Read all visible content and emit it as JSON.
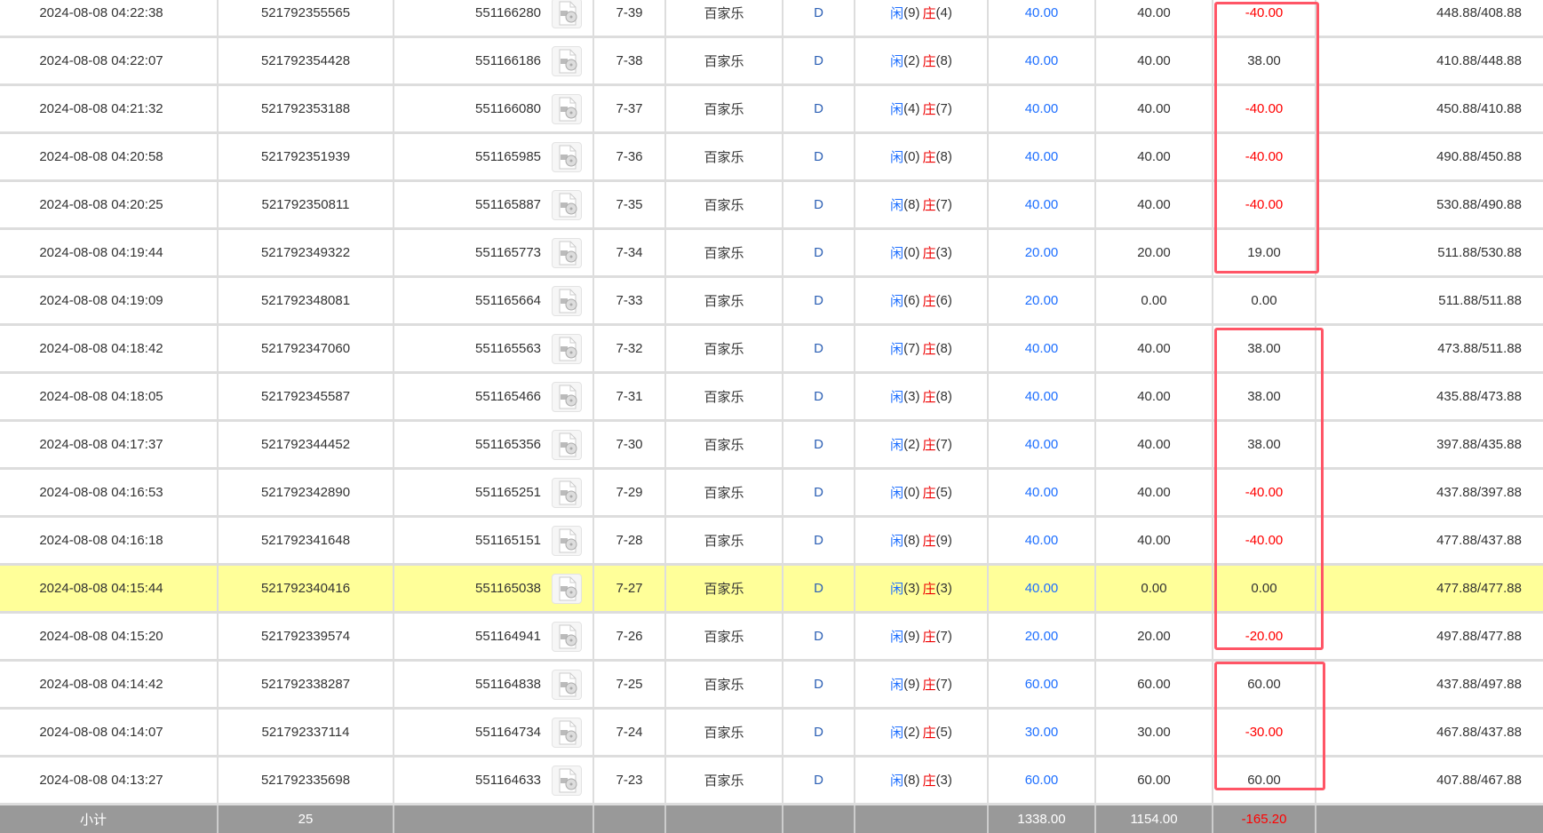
{
  "colors": {
    "player": "#1e6fff",
    "banker": "#ee0000",
    "negative": "#ff0000",
    "highlight": "#ffff99",
    "annotation": "#ff5566"
  },
  "player_label": "闲",
  "banker_label": "庄",
  "icon": "video-file-icon",
  "rows": [
    {
      "time": "2024-08-08 04:22:38",
      "order": "521792355565",
      "round": "551166280",
      "table": "7-39",
      "game": "百家乐",
      "type": "D",
      "p": "9",
      "b": "4",
      "bet": "40.00",
      "valid": "40.00",
      "profit": "-40.00",
      "balance": "448.88/408.88"
    },
    {
      "time": "2024-08-08 04:22:07",
      "order": "521792354428",
      "round": "551166186",
      "table": "7-38",
      "game": "百家乐",
      "type": "D",
      "p": "2",
      "b": "8",
      "bet": "40.00",
      "valid": "40.00",
      "profit": "38.00",
      "balance": "410.88/448.88"
    },
    {
      "time": "2024-08-08 04:21:32",
      "order": "521792353188",
      "round": "551166080",
      "table": "7-37",
      "game": "百家乐",
      "type": "D",
      "p": "4",
      "b": "7",
      "bet": "40.00",
      "valid": "40.00",
      "profit": "-40.00",
      "balance": "450.88/410.88"
    },
    {
      "time": "2024-08-08 04:20:58",
      "order": "521792351939",
      "round": "551165985",
      "table": "7-36",
      "game": "百家乐",
      "type": "D",
      "p": "0",
      "b": "8",
      "bet": "40.00",
      "valid": "40.00",
      "profit": "-40.00",
      "balance": "490.88/450.88"
    },
    {
      "time": "2024-08-08 04:20:25",
      "order": "521792350811",
      "round": "551165887",
      "table": "7-35",
      "game": "百家乐",
      "type": "D",
      "p": "8",
      "b": "7",
      "bet": "40.00",
      "valid": "40.00",
      "profit": "-40.00",
      "balance": "530.88/490.88"
    },
    {
      "time": "2024-08-08 04:19:44",
      "order": "521792349322",
      "round": "551165773",
      "table": "7-34",
      "game": "百家乐",
      "type": "D",
      "p": "0",
      "b": "3",
      "bet": "20.00",
      "valid": "20.00",
      "profit": "19.00",
      "balance": "511.88/530.88"
    },
    {
      "time": "2024-08-08 04:19:09",
      "order": "521792348081",
      "round": "551165664",
      "table": "7-33",
      "game": "百家乐",
      "type": "D",
      "p": "6",
      "b": "6",
      "bet": "20.00",
      "valid": "0.00",
      "profit": "0.00",
      "balance": "511.88/511.88"
    },
    {
      "time": "2024-08-08 04:18:42",
      "order": "521792347060",
      "round": "551165563",
      "table": "7-32",
      "game": "百家乐",
      "type": "D",
      "p": "7",
      "b": "8",
      "bet": "40.00",
      "valid": "40.00",
      "profit": "38.00",
      "balance": "473.88/511.88"
    },
    {
      "time": "2024-08-08 04:18:05",
      "order": "521792345587",
      "round": "551165466",
      "table": "7-31",
      "game": "百家乐",
      "type": "D",
      "p": "3",
      "b": "8",
      "bet": "40.00",
      "valid": "40.00",
      "profit": "38.00",
      "balance": "435.88/473.88"
    },
    {
      "time": "2024-08-08 04:17:37",
      "order": "521792344452",
      "round": "551165356",
      "table": "7-30",
      "game": "百家乐",
      "type": "D",
      "p": "2",
      "b": "7",
      "bet": "40.00",
      "valid": "40.00",
      "profit": "38.00",
      "balance": "397.88/435.88"
    },
    {
      "time": "2024-08-08 04:16:53",
      "order": "521792342890",
      "round": "551165251",
      "table": "7-29",
      "game": "百家乐",
      "type": "D",
      "p": "0",
      "b": "5",
      "bet": "40.00",
      "valid": "40.00",
      "profit": "-40.00",
      "balance": "437.88/397.88"
    },
    {
      "time": "2024-08-08 04:16:18",
      "order": "521792341648",
      "round": "551165151",
      "table": "7-28",
      "game": "百家乐",
      "type": "D",
      "p": "8",
      "b": "9",
      "bet": "40.00",
      "valid": "40.00",
      "profit": "-40.00",
      "balance": "477.88/437.88"
    },
    {
      "time": "2024-08-08 04:15:44",
      "order": "521792340416",
      "round": "551165038",
      "table": "7-27",
      "game": "百家乐",
      "type": "D",
      "p": "3",
      "b": "3",
      "bet": "40.00",
      "valid": "0.00",
      "profit": "0.00",
      "balance": "477.88/477.88",
      "highlighted": true
    },
    {
      "time": "2024-08-08 04:15:20",
      "order": "521792339574",
      "round": "551164941",
      "table": "7-26",
      "game": "百家乐",
      "type": "D",
      "p": "9",
      "b": "7",
      "bet": "20.00",
      "valid": "20.00",
      "profit": "-20.00",
      "balance": "497.88/477.88"
    },
    {
      "time": "2024-08-08 04:14:42",
      "order": "521792338287",
      "round": "551164838",
      "table": "7-25",
      "game": "百家乐",
      "type": "D",
      "p": "9",
      "b": "7",
      "bet": "60.00",
      "valid": "60.00",
      "profit": "60.00",
      "balance": "437.88/497.88"
    },
    {
      "time": "2024-08-08 04:14:07",
      "order": "521792337114",
      "round": "551164734",
      "table": "7-24",
      "game": "百家乐",
      "type": "D",
      "p": "2",
      "b": "5",
      "bet": "30.00",
      "valid": "30.00",
      "profit": "-30.00",
      "balance": "467.88/437.88"
    },
    {
      "time": "2024-08-08 04:13:27",
      "order": "521792335698",
      "round": "551164633",
      "table": "7-23",
      "game": "百家乐",
      "type": "D",
      "p": "8",
      "b": "3",
      "bet": "60.00",
      "valid": "60.00",
      "profit": "60.00",
      "balance": "407.88/467.88"
    }
  ],
  "subtotal": {
    "label": "小计",
    "count": "25",
    "bet": "1338.00",
    "valid": "1154.00",
    "profit": "-165.20"
  }
}
